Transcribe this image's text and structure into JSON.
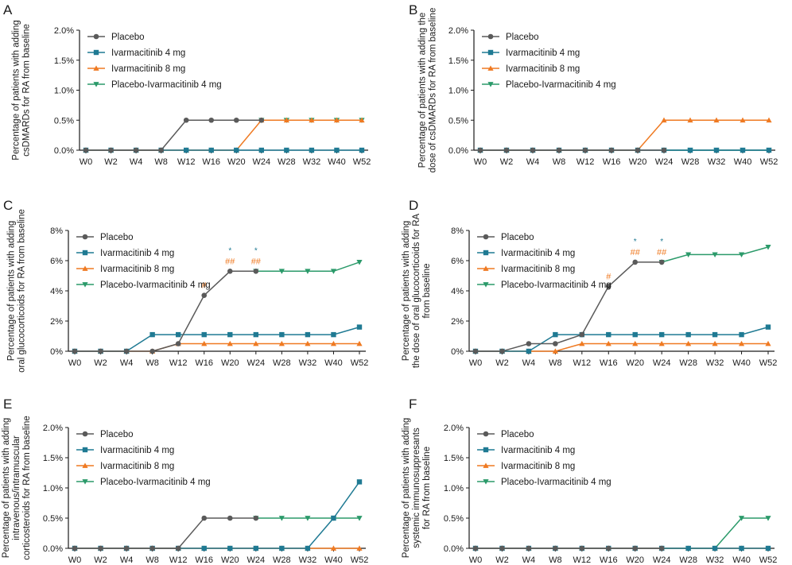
{
  "colors": {
    "Placebo": "#5a5a5a",
    "Ivarmacitinib 4 mg": "#1f7a93",
    "Ivarmacitinib 8 mg": "#ef7a22",
    "Placebo-Ivarmacitinib 4 mg": "#2b9a6a",
    "axis": "#1a1a1a"
  },
  "markers": {
    "Placebo": "circle",
    "Ivarmacitinib 4 mg": "square",
    "Ivarmacitinib 8 mg": "triangle-up",
    "Placebo-Ivarmacitinib 4 mg": "triangle-down"
  },
  "chart_data": [
    {
      "type": "line",
      "panel_label": "A",
      "ylabel": "Percentage of patients with adding\ncsDMARDs for RA from baseline",
      "categories": [
        "W0",
        "W2",
        "W4",
        "W8",
        "W12",
        "W16",
        "W20",
        "W24",
        "W28",
        "W32",
        "W40",
        "W52"
      ],
      "ylim": [
        0,
        2.0
      ],
      "yticks": [
        "0.0%",
        "0.5%",
        "1.0%",
        "1.5%",
        "2.0%"
      ],
      "legend": [
        "Placebo",
        "Ivarmacitinib 4 mg",
        "Ivarmacitinib 8 mg",
        "Placebo-Ivarmacitinib 4 mg"
      ],
      "series": [
        {
          "name": "Placebo",
          "values": [
            0,
            0,
            0,
            0,
            0.5,
            0.5,
            0.5,
            0.5,
            null,
            null,
            null,
            null
          ]
        },
        {
          "name": "Ivarmacitinib 4 mg",
          "values": [
            0,
            0,
            0,
            0,
            0,
            0,
            0,
            0,
            0,
            0,
            0,
            0
          ]
        },
        {
          "name": "Ivarmacitinib 8 mg",
          "values": [
            0,
            0,
            0,
            0,
            0,
            0,
            0,
            0.5,
            0.5,
            0.5,
            0.5,
            0.5
          ]
        },
        {
          "name": "Placebo-Ivarmacitinib 4 mg",
          "values": [
            null,
            null,
            null,
            null,
            null,
            null,
            null,
            0.5,
            0.5,
            0.5,
            0.5,
            0.5
          ]
        }
      ],
      "annotations": []
    },
    {
      "type": "line",
      "panel_label": "B",
      "ylabel": "Percentage of patients with adding the\ndose of csDMARDs for RA from baseline",
      "categories": [
        "W0",
        "W2",
        "W4",
        "W8",
        "W12",
        "W16",
        "W20",
        "W24",
        "W28",
        "W32",
        "W40",
        "W52"
      ],
      "ylim": [
        0,
        2.0
      ],
      "yticks": [
        "0.0%",
        "0.5%",
        "1.0%",
        "1.5%",
        "2.0%"
      ],
      "legend": [
        "Placebo",
        "Ivarmacitinib 4 mg",
        "Ivarmacitinib 8 mg",
        "Placebo-Ivarmacitinib 4 mg"
      ],
      "series": [
        {
          "name": "Placebo",
          "values": [
            0,
            0,
            0,
            0,
            0,
            0,
            0,
            0,
            null,
            null,
            null,
            null
          ]
        },
        {
          "name": "Ivarmacitinib 4 mg",
          "values": [
            0,
            0,
            0,
            0,
            0,
            0,
            0,
            0,
            0,
            0,
            0,
            0
          ]
        },
        {
          "name": "Ivarmacitinib 8 mg",
          "values": [
            0,
            0,
            0,
            0,
            0,
            0,
            0,
            0.5,
            0.5,
            0.5,
            0.5,
            0.5
          ]
        },
        {
          "name": "Placebo-Ivarmacitinib 4 mg",
          "values": [
            null,
            null,
            null,
            null,
            null,
            null,
            null,
            0,
            0,
            0,
            0,
            0
          ]
        }
      ],
      "annotations": []
    },
    {
      "type": "line",
      "panel_label": "C",
      "ylabel": "Percentage of patients with adding\noral glucocorticoids for RA from baseline",
      "categories": [
        "W0",
        "W2",
        "W4",
        "W8",
        "W12",
        "W16",
        "W20",
        "W24",
        "W28",
        "W32",
        "W40",
        "W52"
      ],
      "ylim": [
        0,
        8
      ],
      "yticks": [
        "0%",
        "2%",
        "4%",
        "6%",
        "8%"
      ],
      "legend": [
        "Placebo",
        "Ivarmacitinib 4 mg",
        "Ivarmacitinib 8 mg",
        "Placebo-Ivarmacitinib 4 mg"
      ],
      "series": [
        {
          "name": "Placebo",
          "values": [
            0,
            0,
            0,
            0,
            0.5,
            3.7,
            5.3,
            5.3,
            null,
            null,
            null,
            null
          ]
        },
        {
          "name": "Ivarmacitinib 4 mg",
          "values": [
            0,
            0,
            0,
            1.1,
            1.1,
            1.1,
            1.1,
            1.1,
            1.1,
            1.1,
            1.1,
            1.6
          ]
        },
        {
          "name": "Ivarmacitinib 8 mg",
          "values": [
            0,
            0,
            0,
            0,
            0.5,
            0.5,
            0.5,
            0.5,
            0.5,
            0.5,
            0.5,
            0.5
          ]
        },
        {
          "name": "Placebo-Ivarmacitinib 4 mg",
          "values": [
            null,
            null,
            null,
            null,
            null,
            null,
            null,
            5.3,
            5.3,
            5.3,
            5.3,
            5.9
          ]
        }
      ],
      "annotations": [
        {
          "text": "#",
          "category": "W16",
          "level": 1,
          "series": "Ivarmacitinib 8 mg"
        },
        {
          "text": "##",
          "category": "W20",
          "level": 1,
          "series": "Ivarmacitinib 8 mg"
        },
        {
          "text": "*",
          "category": "W20",
          "level": 2,
          "series": "Ivarmacitinib 4 mg"
        },
        {
          "text": "##",
          "category": "W24",
          "level": 1,
          "series": "Ivarmacitinib 8 mg"
        },
        {
          "text": "*",
          "category": "W24",
          "level": 2,
          "series": "Ivarmacitinib 4 mg"
        }
      ]
    },
    {
      "type": "line",
      "panel_label": "D",
      "ylabel": "Percentage of patients with adding\nthe dose of oral glucocorticoids for RA\nfrom baseline",
      "categories": [
        "W0",
        "W2",
        "W4",
        "W8",
        "W12",
        "W16",
        "W20",
        "W24",
        "W28",
        "W32",
        "W40",
        "W52"
      ],
      "ylim": [
        0,
        8
      ],
      "yticks": [
        "0%",
        "2%",
        "4%",
        "6%",
        "8%"
      ],
      "legend": [
        "Placebo",
        "Ivarmacitinib 4 mg",
        "Ivarmacitinib 8 mg",
        "Placebo-Ivarmacitinib 4 mg"
      ],
      "series": [
        {
          "name": "Placebo",
          "values": [
            0,
            0,
            0.5,
            0.5,
            1.1,
            4.3,
            5.9,
            5.9,
            null,
            null,
            null,
            null
          ]
        },
        {
          "name": "Ivarmacitinib 4 mg",
          "values": [
            0,
            0,
            0,
            1.1,
            1.1,
            1.1,
            1.1,
            1.1,
            1.1,
            1.1,
            1.1,
            1.6
          ]
        },
        {
          "name": "Ivarmacitinib 8 mg",
          "values": [
            0,
            0,
            0,
            0,
            0.5,
            0.5,
            0.5,
            0.5,
            0.5,
            0.5,
            0.5,
            0.5
          ]
        },
        {
          "name": "Placebo-Ivarmacitinib 4 mg",
          "values": [
            null,
            null,
            null,
            null,
            null,
            null,
            null,
            5.9,
            6.4,
            6.4,
            6.4,
            6.9
          ]
        }
      ],
      "annotations": [
        {
          "text": "#",
          "category": "W16",
          "level": 1,
          "series": "Ivarmacitinib 8 mg"
        },
        {
          "text": "##",
          "category": "W20",
          "level": 1,
          "series": "Ivarmacitinib 8 mg"
        },
        {
          "text": "*",
          "category": "W20",
          "level": 2,
          "series": "Ivarmacitinib 4 mg"
        },
        {
          "text": "##",
          "category": "W24",
          "level": 1,
          "series": "Ivarmacitinib 8 mg"
        },
        {
          "text": "*",
          "category": "W24",
          "level": 2,
          "series": "Ivarmacitinib 4 mg"
        }
      ]
    },
    {
      "type": "line",
      "panel_label": "E",
      "ylabel": "Percentage of patients with adding\nintravenous/intramuscular\ncorticosteroids for RA from baseline",
      "categories": [
        "W0",
        "W2",
        "W4",
        "W8",
        "W12",
        "W16",
        "W20",
        "W24",
        "W28",
        "W32",
        "W40",
        "W52"
      ],
      "ylim": [
        0,
        2.0
      ],
      "yticks": [
        "0.0%",
        "0.5%",
        "1.0%",
        "1.5%",
        "2.0%"
      ],
      "legend": [
        "Placebo",
        "Ivarmacitinib 4 mg",
        "Ivarmacitinib 8 mg",
        "Placebo-Ivarmacitinib 4 mg"
      ],
      "series": [
        {
          "name": "Placebo",
          "values": [
            0,
            0,
            0,
            0,
            0,
            0.5,
            0.5,
            0.5,
            null,
            null,
            null,
            null
          ]
        },
        {
          "name": "Ivarmacitinib 4 mg",
          "values": [
            0,
            0,
            0,
            0,
            0,
            0,
            0,
            0,
            0,
            0,
            0.5,
            1.1
          ]
        },
        {
          "name": "Ivarmacitinib 8 mg",
          "values": [
            0,
            0,
            0,
            0,
            0,
            0,
            0,
            0,
            0,
            0,
            0,
            0
          ]
        },
        {
          "name": "Placebo-Ivarmacitinib 4 mg",
          "values": [
            null,
            null,
            null,
            null,
            null,
            null,
            null,
            0.5,
            0.5,
            0.5,
            0.5,
            0.5
          ]
        }
      ],
      "annotations": []
    },
    {
      "type": "line",
      "panel_label": "F",
      "ylabel": "Percentage of patients with adding\nsystemic immunosuppresants\nfor RA from baseline",
      "categories": [
        "W0",
        "W2",
        "W4",
        "W8",
        "W12",
        "W16",
        "W20",
        "W24",
        "W28",
        "W32",
        "W40",
        "W52"
      ],
      "ylim": [
        0,
        2.0
      ],
      "yticks": [
        "0.0%",
        "0.5%",
        "1.0%",
        "1.5%",
        "2.0%"
      ],
      "legend": [
        "Placebo",
        "Ivarmacitinib 4 mg",
        "Ivarmacitinib 8 mg",
        "Placebo-Ivarmacitinib 4 mg"
      ],
      "series": [
        {
          "name": "Placebo",
          "values": [
            0,
            0,
            0,
            0,
            0,
            0,
            0,
            0,
            null,
            null,
            null,
            null
          ]
        },
        {
          "name": "Ivarmacitinib 4 mg",
          "values": [
            0,
            0,
            0,
            0,
            0,
            0,
            0,
            0,
            0,
            0,
            0,
            0
          ]
        },
        {
          "name": "Ivarmacitinib 8 mg",
          "values": [
            0,
            0,
            0,
            0,
            0,
            0,
            0,
            0,
            0,
            0,
            0,
            0
          ]
        },
        {
          "name": "Placebo-Ivarmacitinib 4 mg",
          "values": [
            null,
            null,
            null,
            null,
            null,
            null,
            null,
            0,
            0,
            0,
            0.5,
            0.5
          ]
        }
      ],
      "annotations": []
    }
  ]
}
